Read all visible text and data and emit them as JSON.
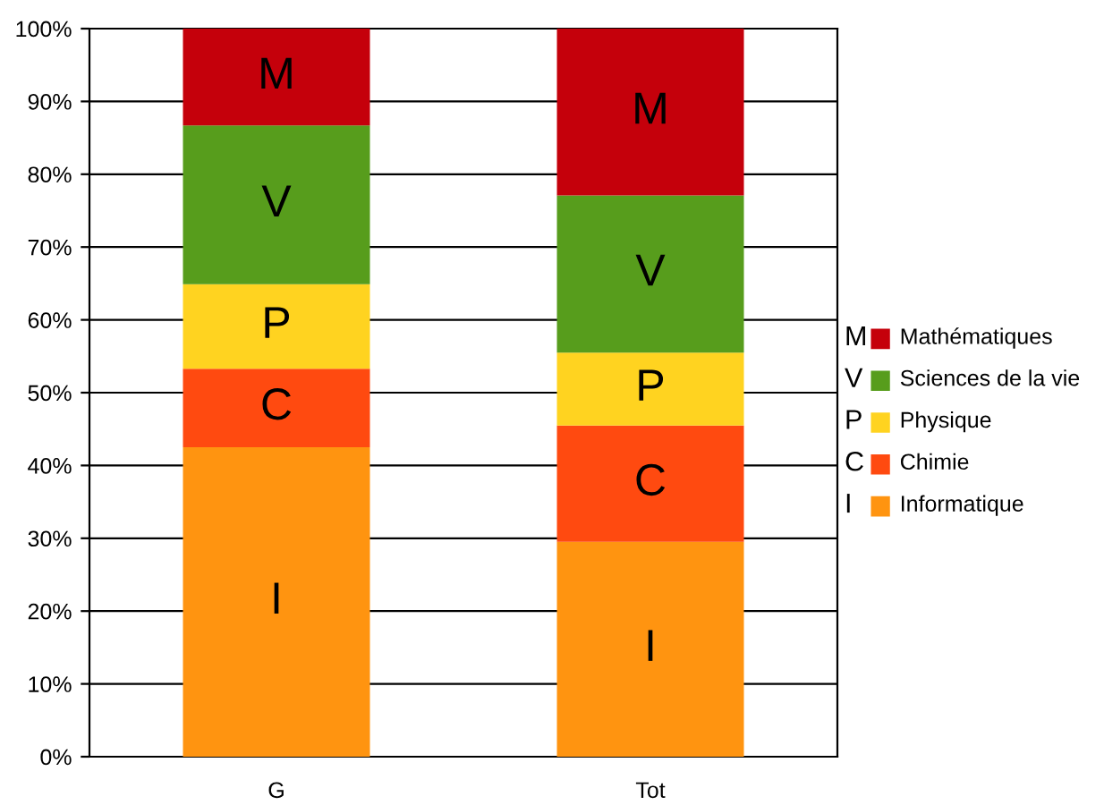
{
  "chart_data": {
    "type": "bar",
    "stacked": true,
    "categories": [
      "G",
      "Tot"
    ],
    "series": [
      {
        "name": "Informatique",
        "color": "#ff9410",
        "values": [
          42.5,
          29.5
        ],
        "value_labels": [
          "I",
          "I"
        ]
      },
      {
        "name": "Chimie",
        "color": "#ff4a10",
        "values": [
          10.8,
          16
        ],
        "value_labels": [
          "C",
          "C"
        ]
      },
      {
        "name": "Physique",
        "color": "#ffd320",
        "values": [
          11.6,
          10
        ],
        "value_labels": [
          "P",
          "P"
        ]
      },
      {
        "name": "Sciences de la vie",
        "color": "#579d1c",
        "values": [
          21.8,
          21.6
        ],
        "value_labels": [
          "V",
          "V"
        ]
      },
      {
        "name": "Mathématiques",
        "color": "#c5000b",
        "values": [
          13.3,
          22.9
        ],
        "value_labels": [
          "M",
          "M"
        ]
      }
    ],
    "ylim": [
      0,
      100
    ],
    "yticks": [
      {
        "value": 0,
        "label": "0%"
      },
      {
        "value": 10,
        "label": "10%"
      },
      {
        "value": 20,
        "label": "20%"
      },
      {
        "value": 30,
        "label": "30%"
      },
      {
        "value": 40,
        "label": "40%"
      },
      {
        "value": 50,
        "label": "50%"
      },
      {
        "value": 60,
        "label": "60%"
      },
      {
        "value": 70,
        "label": "70%"
      },
      {
        "value": 80,
        "label": "80%"
      },
      {
        "value": 90,
        "label": "90%"
      },
      {
        "value": 100,
        "label": "100%"
      }
    ],
    "grid": "y",
    "legend": "right"
  }
}
